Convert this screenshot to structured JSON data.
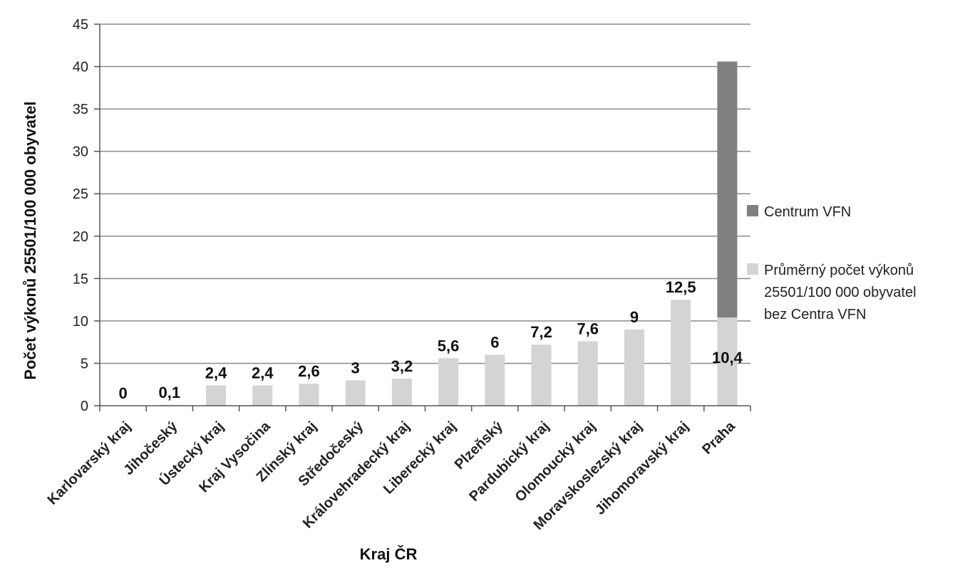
{
  "chart_data": {
    "type": "bar",
    "stacked": true,
    "title": "",
    "xlabel": "Kraj ČR",
    "ylabel": "Počet výkonů 25501/100 000 obyvatel",
    "ylim": [
      0,
      45
    ],
    "yticks": [
      "0",
      "5",
      "10",
      "15",
      "20",
      "25",
      "30",
      "35",
      "40",
      "45"
    ],
    "grid": true,
    "legend_position": "right",
    "categories": [
      "Karlovarský kraj",
      "Jihočeský",
      "Ústecký kraj",
      "Kraj Vysočina",
      "Zlínský kraj",
      "Středočeský",
      "Královehradecký kraj",
      "Liberecký kraj",
      "Plzeňský",
      "Pardubický kraj",
      "Olomoucký kraj",
      "Moravskoslezský kraj",
      "Jihomoravský kraj",
      "Praha"
    ],
    "series": [
      {
        "name": "Průměrný počet výkonů 25501/100 000 obyvatel bez Centra VFN",
        "legend_lines": [
          "Průměrný počet výkonů",
          "25501/100 000 obyvatel",
          "bez Centra VFN"
        ],
        "color": "#d4d4d4",
        "values": [
          0,
          0.1,
          2.4,
          2.4,
          2.6,
          3,
          3.2,
          5.6,
          6,
          7.2,
          7.6,
          9,
          12.5,
          10.4
        ],
        "labels": [
          "0",
          "0,1",
          "2,4",
          "2,4",
          "2,6",
          "3",
          "3,2",
          "5,6",
          "6",
          "7,2",
          "7,6",
          "9",
          "12,5",
          "10,4"
        ]
      },
      {
        "name": "Centrum VFN",
        "legend_lines": [
          "Centrum VFN"
        ],
        "color": "#808080",
        "values": [
          0,
          0,
          0,
          0,
          0,
          0,
          0,
          0,
          0,
          0,
          0,
          0,
          0,
          30.2
        ]
      }
    ]
  }
}
